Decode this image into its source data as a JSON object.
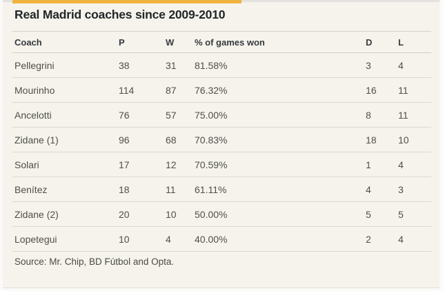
{
  "chart_data": {
    "type": "table",
    "title": "Real Madrid coaches since 2009-2010",
    "columns": [
      "Coach",
      "P",
      "W",
      "% of games won",
      "D",
      "L"
    ],
    "rows": [
      [
        "Pellegrini",
        "38",
        "31",
        "81.58%",
        "3",
        "4"
      ],
      [
        "Mourinho",
        "114",
        "87",
        "76.32%",
        "16",
        "11"
      ],
      [
        "Ancelotti",
        "76",
        "57",
        "75.00%",
        "8",
        "11"
      ],
      [
        "Zidane (1)",
        "96",
        "68",
        "70.83%",
        "18",
        "10"
      ],
      [
        "Solari",
        "17",
        "12",
        "70.59%",
        "1",
        "4"
      ],
      [
        "Benítez",
        "18",
        "11",
        "61.11%",
        "4",
        "3"
      ],
      [
        "Zidane (2)",
        "20",
        "10",
        "50.00%",
        "5",
        "5"
      ],
      [
        "Lopetegui",
        "10",
        "4",
        "40.00%",
        "2",
        "4"
      ]
    ],
    "source": "Source: Mr. Chip, BD Fútbol and Opta.",
    "layout": {
      "grid": "horizontal-rules-only",
      "numeric_alignment": "left"
    }
  },
  "colors": {
    "accent_bar": "#efb43f",
    "card_background": "#f5f3ec",
    "title_text": "#222629",
    "body_text": "#504e49",
    "rule": "#d8d7d1"
  }
}
